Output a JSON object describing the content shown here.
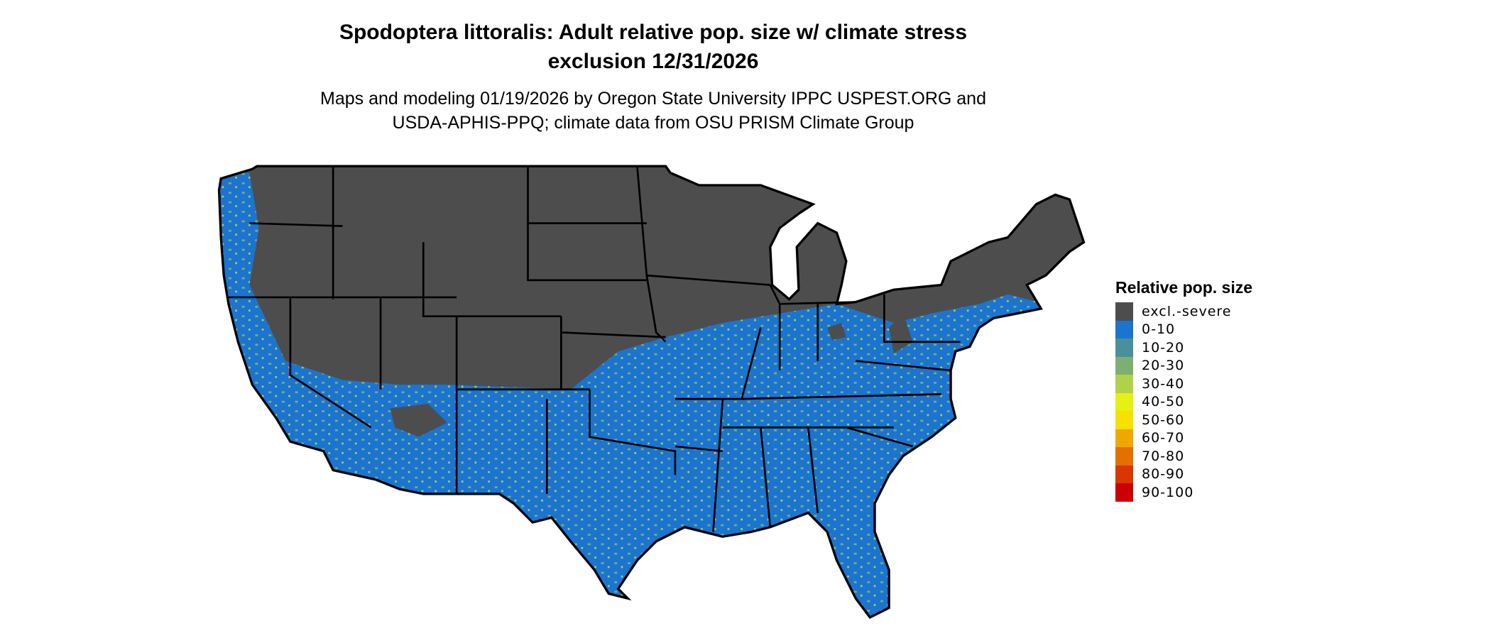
{
  "title": {
    "line1": "Spodoptera littoralis: Adult relative pop. size w/ climate stress",
    "line2": "exclusion 12/31/2026"
  },
  "subtitle": {
    "line1": "Maps and modeling 01/19/2026 by Oregon State University IPPC USPEST.ORG and",
    "line2": "USDA-APHIS-PPQ; climate data from OSU PRISM Climate Group"
  },
  "map": {
    "region": "Conterminous United States",
    "dominant_classes": [
      "excl.-severe",
      "0-10",
      "20-30",
      "30-40"
    ]
  },
  "legend": {
    "title": "Relative pop. size",
    "items": [
      {
        "label": "excl.-severe",
        "color": "#4d4d4d"
      },
      {
        "label": "0-10",
        "color": "#1b74d0"
      },
      {
        "label": "10-20",
        "color": "#4a8f9c"
      },
      {
        "label": "20-30",
        "color": "#7daf72"
      },
      {
        "label": "30-40",
        "color": "#b2d14a"
      },
      {
        "label": "40-50",
        "color": "#e6f014"
      },
      {
        "label": "50-60",
        "color": "#f8e000"
      },
      {
        "label": "60-70",
        "color": "#eea800"
      },
      {
        "label": "70-80",
        "color": "#e37000"
      },
      {
        "label": "80-90",
        "color": "#da3600"
      },
      {
        "label": "90-100",
        "color": "#cc0000"
      }
    ]
  }
}
